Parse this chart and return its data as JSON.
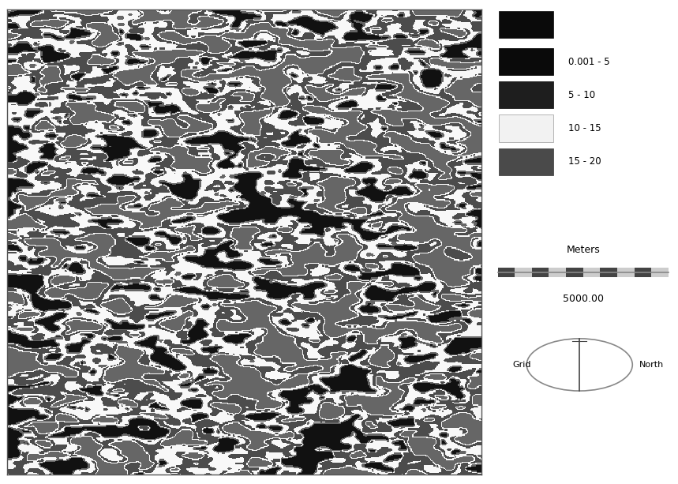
{
  "legend_entries": [
    {
      "label": "0.001 - 5",
      "color": "#0a0a0a"
    },
    {
      "label": "5 - 10",
      "color": "#1e1e1e"
    },
    {
      "label": "10 - 15",
      "color": "#f2f2f2"
    },
    {
      "label": "15 - 20",
      "color": "#4a4a4a"
    }
  ],
  "scale_label": "Meters",
  "scale_value": "5000.00",
  "north_label": "North",
  "grid_label": "Grid",
  "bg_color": "#ffffff",
  "map_gray_base": 0.42,
  "map_border": "#000000"
}
